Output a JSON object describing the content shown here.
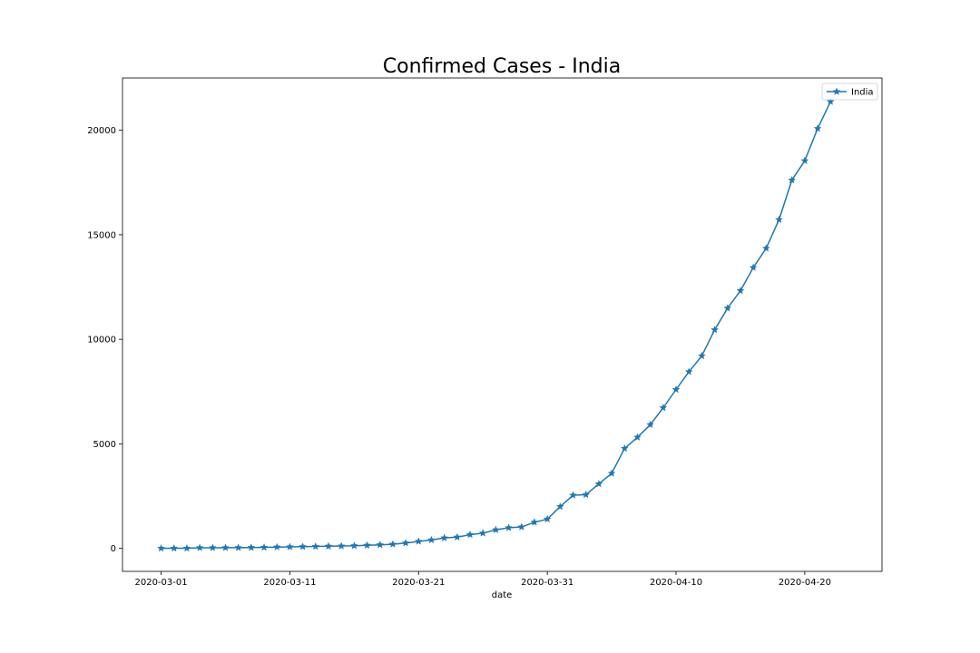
{
  "chart_data": {
    "type": "line",
    "title": "Confirmed Cases - India",
    "xlabel": "date",
    "ylabel": "",
    "x_start": "2020-03-01",
    "x_ticks": [
      "2020-03-01",
      "2020-03-11",
      "2020-03-21",
      "2020-03-31",
      "2020-04-10",
      "2020-04-20"
    ],
    "y_ticks": [
      0,
      5000,
      10000,
      15000,
      20000
    ],
    "xlim": [
      "2020-02-27",
      "2020-04-26"
    ],
    "ylim": [
      -1100,
      22500
    ],
    "grid": false,
    "legend": "top-right",
    "color": "#1f77b4",
    "marker": "star",
    "series": [
      {
        "name": "India",
        "x": [
          "2020-03-01",
          "2020-03-02",
          "2020-03-03",
          "2020-03-04",
          "2020-03-05",
          "2020-03-06",
          "2020-03-07",
          "2020-03-08",
          "2020-03-09",
          "2020-03-10",
          "2020-03-11",
          "2020-03-12",
          "2020-03-13",
          "2020-03-14",
          "2020-03-15",
          "2020-03-16",
          "2020-03-17",
          "2020-03-18",
          "2020-03-19",
          "2020-03-20",
          "2020-03-21",
          "2020-03-22",
          "2020-03-23",
          "2020-03-24",
          "2020-03-25",
          "2020-03-26",
          "2020-03-27",
          "2020-03-28",
          "2020-03-29",
          "2020-03-30",
          "2020-03-31",
          "2020-04-01",
          "2020-04-02",
          "2020-04-03",
          "2020-04-04",
          "2020-04-05",
          "2020-04-06",
          "2020-04-07",
          "2020-04-08",
          "2020-04-09",
          "2020-04-10",
          "2020-04-11",
          "2020-04-12",
          "2020-04-13",
          "2020-04-14",
          "2020-04-15",
          "2020-04-16",
          "2020-04-17",
          "2020-04-18",
          "2020-04-19",
          "2020-04-20",
          "2020-04-21",
          "2020-04-22"
        ],
        "values": [
          3,
          5,
          5,
          28,
          30,
          31,
          34,
          39,
          48,
          63,
          71,
          81,
          91,
          102,
          112,
          126,
          146,
          171,
          198,
          256,
          334,
          403,
          499,
          536,
          657,
          727,
          887,
          987,
          1024,
          1251,
          1397,
          1998,
          2543,
          2567,
          3082,
          3588,
          4778,
          5311,
          5916,
          6725,
          7598,
          8446,
          9205,
          10453,
          11487,
          12322,
          13430,
          14352,
          15722,
          17615,
          18539,
          20080,
          21370
        ]
      }
    ]
  }
}
